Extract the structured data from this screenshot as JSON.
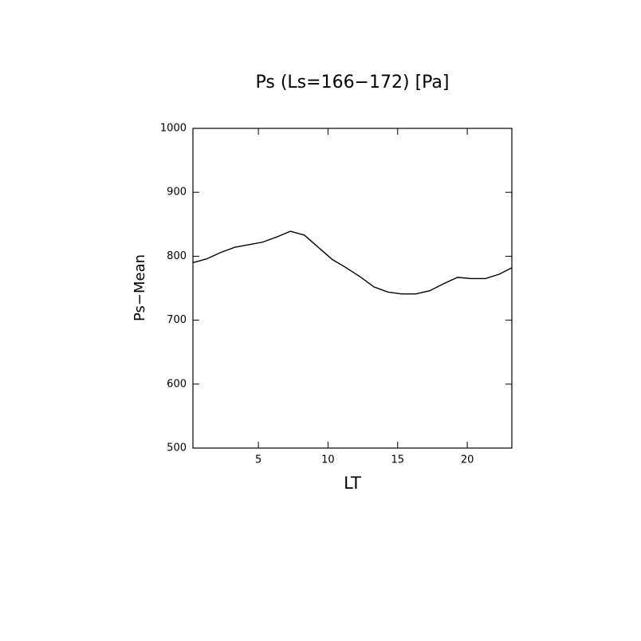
{
  "chart_data": {
    "type": "line",
    "title": "Ps (Ls=166−172) [Pa]",
    "x_label": "LT",
    "y_label": "Ps−Mean",
    "x": [
      0.3,
      1.3,
      2.3,
      3.3,
      4.3,
      5.3,
      6.3,
      7.3,
      8.3,
      9.3,
      10.3,
      11.3,
      12.3,
      13.3,
      14.3,
      15.3,
      16.3,
      17.3,
      18.3,
      19.3,
      20.3,
      21.3,
      22.3,
      23.2
    ],
    "series": [
      {
        "color": "#000000",
        "values": [
          790,
          796,
          806,
          814,
          818,
          822,
          830,
          839,
          833,
          814,
          795,
          782,
          768,
          752,
          744,
          741,
          741,
          746,
          757,
          767,
          765,
          765,
          772,
          782
        ]
      }
    ],
    "xlim": [
      0.3,
      23.2
    ],
    "ylim": [
      500,
      1000
    ],
    "xticks": [
      5,
      10,
      15,
      20
    ],
    "yticks": [
      500,
      600,
      700,
      800,
      900,
      1000
    ]
  }
}
